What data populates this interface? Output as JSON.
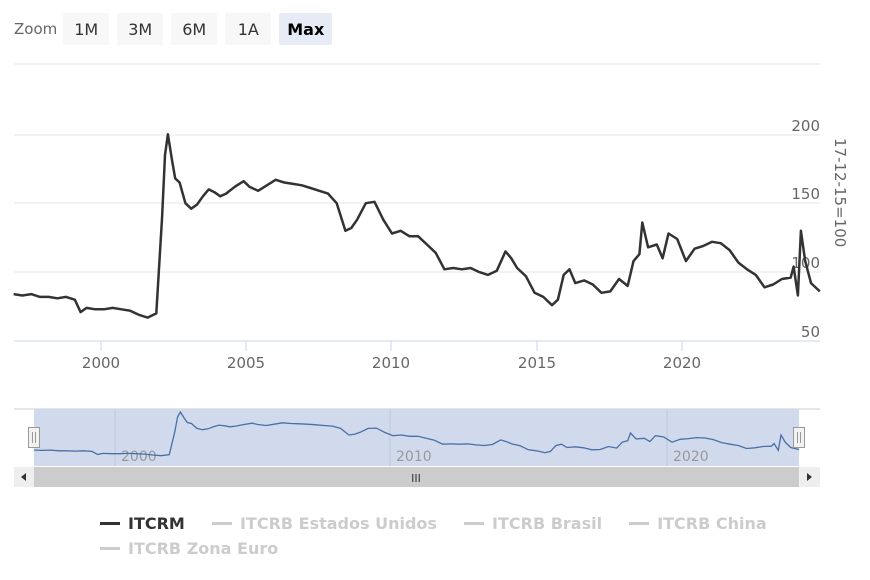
{
  "rangeSelector": {
    "label": "Zoom",
    "buttons": [
      {
        "label": "1M",
        "active": false
      },
      {
        "label": "3M",
        "active": false
      },
      {
        "label": "6M",
        "active": false
      },
      {
        "label": "1A",
        "active": false
      },
      {
        "label": "Max",
        "active": true
      }
    ]
  },
  "yAxis": {
    "title": "17-12-15=100",
    "ticks": [
      "200",
      "150",
      "100",
      "50"
    ]
  },
  "xAxis": {
    "ticks": [
      "2000",
      "2005",
      "2010",
      "2015",
      "2020"
    ]
  },
  "navigator": {
    "ticks": [
      "2000",
      "2010",
      "2020"
    ],
    "scrollbar_grip": "III"
  },
  "legend": {
    "items": [
      {
        "label": "ITCRM",
        "visible": true
      },
      {
        "label": "ITCRB Estados Unidos",
        "visible": false
      },
      {
        "label": "ITCRB Brasil",
        "visible": false
      },
      {
        "label": "ITCRB China",
        "visible": false
      },
      {
        "label": "ITCRB Zona Euro",
        "visible": false
      }
    ]
  },
  "colors": {
    "series": "#333333",
    "navigator_series": "#4a6fa5",
    "navigator_mask": "#ccd6eb",
    "grid": "#e6e6e6",
    "axis_line": "#ccd6eb",
    "scrollbar_track": "#cccccc",
    "scrollbar_button": "#eeeeee"
  },
  "chart_data": {
    "type": "line",
    "title": "",
    "xlabel": "",
    "ylabel": "17-12-15=100",
    "ylim": [
      50,
      200
    ],
    "xlim": [
      1997.0,
      2024.7
    ],
    "grid": true,
    "legend_position": "bottom",
    "series": [
      {
        "name": "ITCRM",
        "x": [
          1997.0,
          1997.3,
          1997.6,
          1997.9,
          1998.2,
          1998.5,
          1998.8,
          1999.1,
          1999.3,
          1999.5,
          1999.8,
          2000.1,
          2000.4,
          2000.7,
          2001.0,
          2001.3,
          2001.6,
          2001.9,
          2002.1,
          2002.2,
          2002.3,
          2002.45,
          2002.55,
          2002.7,
          2002.9,
          2003.1,
          2003.3,
          2003.5,
          2003.7,
          2003.9,
          2004.1,
          2004.3,
          2004.6,
          2004.9,
          2005.1,
          2005.4,
          2005.7,
          2006.0,
          2006.3,
          2006.6,
          2006.9,
          2007.2,
          2007.5,
          2007.8,
          2008.1,
          2008.4,
          2008.6,
          2008.8,
          2009.1,
          2009.4,
          2009.7,
          2010.0,
          2010.3,
          2010.6,
          2010.9,
          2011.2,
          2011.5,
          2011.8,
          2012.1,
          2012.4,
          2012.7,
          2013.0,
          2013.3,
          2013.6,
          2013.9,
          2014.1,
          2014.3,
          2014.6,
          2014.9,
          2015.2,
          2015.5,
          2015.7,
          2015.9,
          2016.1,
          2016.3,
          2016.6,
          2016.9,
          2017.2,
          2017.5,
          2017.8,
          2018.1,
          2018.3,
          2018.5,
          2018.6,
          2018.8,
          2019.1,
          2019.3,
          2019.5,
          2019.8,
          2020.1,
          2020.4,
          2020.7,
          2021.0,
          2021.3,
          2021.6,
          2021.9,
          2022.2,
          2022.5,
          2022.8,
          2023.1,
          2023.4,
          2023.7,
          2023.8,
          2023.95,
          2024.05,
          2024.2,
          2024.4,
          2024.7
        ],
        "values": [
          84,
          83,
          84,
          82,
          82,
          81,
          82,
          80,
          71,
          74,
          73,
          73,
          74,
          73,
          72,
          69,
          67,
          70,
          140,
          185,
          200,
          180,
          168,
          165,
          150,
          146,
          149,
          155,
          160,
          158,
          155,
          157,
          162,
          166,
          162,
          159,
          163,
          167,
          165,
          164,
          163,
          161,
          159,
          157,
          150,
          130,
          132,
          138,
          150,
          151,
          138,
          128,
          130,
          126,
          126,
          120,
          114,
          102,
          103,
          102,
          103,
          100,
          98,
          101,
          115,
          110,
          103,
          97,
          85,
          82,
          76,
          80,
          98,
          102,
          92,
          94,
          91,
          85,
          86,
          95,
          90,
          108,
          113,
          136,
          118,
          120,
          110,
          128,
          124,
          108,
          117,
          119,
          122,
          121,
          116,
          107,
          102,
          98,
          89,
          91,
          95,
          96,
          104,
          83,
          130,
          108,
          92,
          86
        ]
      },
      {
        "name": "ITCRB Estados Unidos",
        "visible": false
      },
      {
        "name": "ITCRB Brasil",
        "visible": false
      },
      {
        "name": "ITCRB China",
        "visible": false
      },
      {
        "name": "ITCRB Zona Euro",
        "visible": false
      }
    ]
  }
}
